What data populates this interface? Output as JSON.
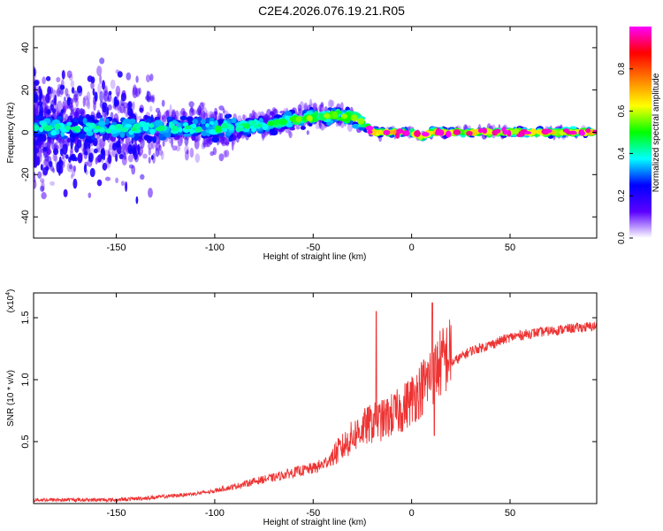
{
  "title": "C2E4.2026.076.19.21.R05",
  "chart_data": [
    {
      "type": "heatmap",
      "name": "spectrogram",
      "xlabel": "Height of straight line (km)",
      "ylabel": "Frequency (Hz)",
      "xlim": [
        -192,
        94
      ],
      "ylim": [
        -50,
        50
      ],
      "xticks": [
        -150,
        -100,
        -50,
        0,
        50
      ],
      "yticks": [
        -40,
        -20,
        0,
        20,
        40
      ],
      "xtick_labels": [
        "-150",
        "-100",
        "-50",
        "0",
        "50"
      ],
      "ytick_labels": [
        "-40",
        "-20",
        "0",
        "20",
        "40"
      ],
      "centerline": {
        "x": [
          -192,
          -100,
          -80,
          -60,
          -40,
          -30,
          -25,
          -20,
          -10,
          0,
          5,
          10,
          20,
          94
        ],
        "y": [
          2,
          2,
          3,
          6,
          8,
          7,
          5,
          0,
          0,
          0,
          -2,
          0,
          0,
          0
        ]
      },
      "colorbar": {
        "label": "Normalized spectral amplitude",
        "range": [
          0.0,
          1.0
        ],
        "ticks": [
          0.0,
          0.2,
          0.4,
          0.6,
          0.8
        ],
        "tick_labels": [
          "0.0",
          "0.2",
          "0.4",
          "0.6",
          "0.8"
        ],
        "colors": [
          "#ffffff",
          "#5a00ff",
          "#0000ff",
          "#00ffff",
          "#00ff00",
          "#ffff00",
          "#ff7f00",
          "#ff0000",
          "#ff00ff"
        ]
      }
    },
    {
      "type": "line",
      "name": "snr",
      "xlabel": "Height of straight line (km)",
      "ylabel": "SNR (10 * v/v)",
      "scale_label": "(x10",
      "scale_exp": "4",
      "scale_close": ")",
      "xlim": [
        -192,
        94
      ],
      "ylim": [
        0.0,
        1.7
      ],
      "xticks": [
        -150,
        -100,
        -50,
        0,
        50
      ],
      "yticks": [
        0.5,
        1.0,
        1.5
      ],
      "xtick_labels": [
        "-150",
        "-100",
        "-50",
        "0",
        "50"
      ],
      "ytick_labels": [
        "0.5",
        "1.0",
        "1.5"
      ],
      "color": "#ee3333",
      "x_envelope": [
        -192,
        -150,
        -130,
        -110,
        -100,
        -90,
        -80,
        -70,
        -60,
        -50,
        -45,
        -40,
        -35,
        -30,
        -25,
        -20,
        -15,
        -10,
        -5,
        0,
        5,
        10,
        15,
        20,
        30,
        40,
        50,
        60,
        70,
        80,
        94
      ],
      "y_envelope": [
        0.03,
        0.03,
        0.05,
        0.08,
        0.1,
        0.13,
        0.17,
        0.2,
        0.24,
        0.27,
        0.3,
        0.36,
        0.42,
        0.5,
        0.56,
        0.6,
        0.62,
        0.66,
        0.7,
        0.78,
        0.86,
        0.96,
        1.05,
        1.12,
        1.22,
        1.27,
        1.33,
        1.36,
        1.38,
        1.4,
        1.42
      ],
      "spikes": [
        {
          "x": -18,
          "y": 1.55
        },
        {
          "x": 10.5,
          "y": 1.62
        },
        {
          "x": 11.5,
          "y": 0.55
        }
      ]
    }
  ]
}
